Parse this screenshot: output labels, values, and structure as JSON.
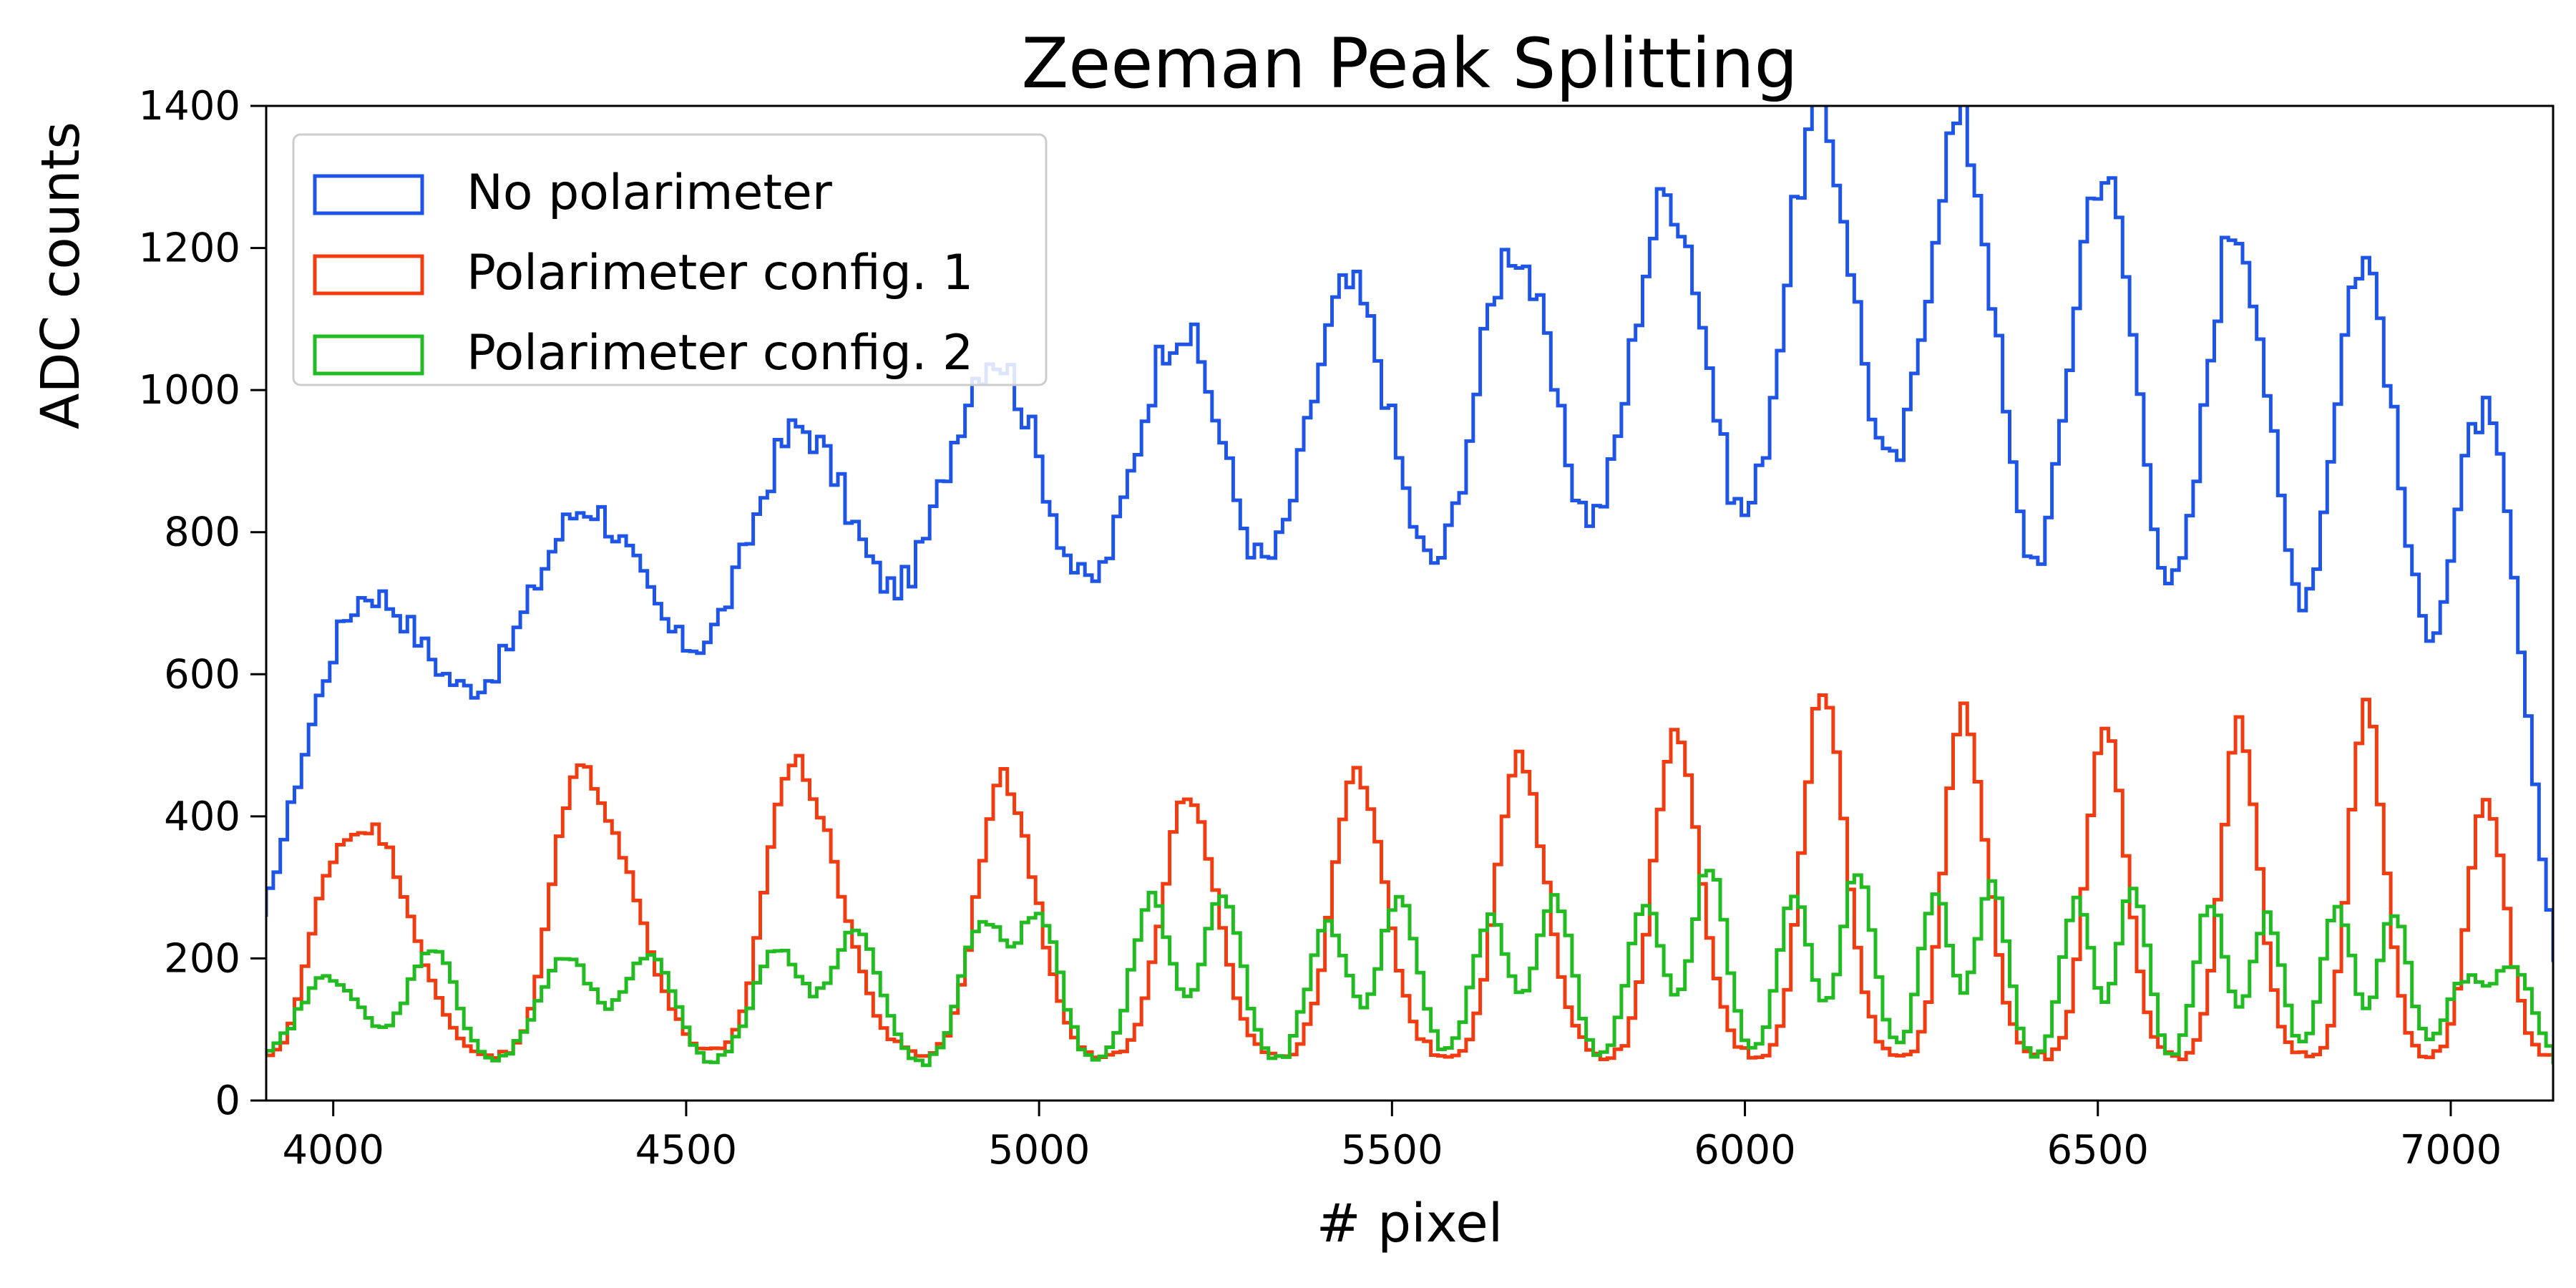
{
  "chart_data": {
    "type": "line",
    "step": true,
    "title": "Zeeman Peak Splitting",
    "xlabel": "# pixel",
    "ylabel": "ADC counts",
    "xlim": [
      3905,
      7145
    ],
    "ylim": [
      0,
      1400
    ],
    "xticks": [
      4000,
      4500,
      5000,
      5500,
      6000,
      6500,
      7000
    ],
    "yticks": [
      0,
      200,
      400,
      600,
      800,
      1000,
      1200,
      1400
    ],
    "legend_position": "top-left",
    "bin_width": 10,
    "series": [
      {
        "name": "No polarimeter",
        "color": "#1f55e6",
        "baseline": 30,
        "peaks": [
          {
            "x": 4060,
            "y": 660,
            "sl": 95,
            "sr": 130,
            "sh": 0.7
          },
          {
            "x": 4380,
            "y": 740,
            "sl": 95,
            "sr": 130,
            "sh": 0.72
          },
          {
            "x": 4680,
            "y": 830,
            "sl": 85,
            "sr": 110,
            "sh": 0.6
          },
          {
            "x": 4950,
            "y": 940,
            "sl": 80,
            "sr": 100,
            "sh": 0.65
          },
          {
            "x": 5210,
            "y": 990,
            "sl": 75,
            "sr": 90,
            "sh": 0.6
          },
          {
            "x": 5450,
            "y": 1050,
            "sl": 70,
            "sr": 85,
            "sh": 0.6
          },
          {
            "x": 5680,
            "y": 1110,
            "sl": 65,
            "sr": 80,
            "sh": 0.55
          },
          {
            "x": 5900,
            "y": 1185,
            "sl": 65,
            "sr": 75,
            "sh": 0.5
          },
          {
            "x": 6110,
            "y": 1295,
            "sl": 60,
            "sr": 72,
            "sh": 0.45
          },
          {
            "x": 6310,
            "y": 1285,
            "sl": 58,
            "sr": 68,
            "sh": 0.45
          },
          {
            "x": 6510,
            "y": 1235,
            "sl": 55,
            "sr": 65,
            "sh": 0.4
          },
          {
            "x": 6700,
            "y": 1160,
            "sl": 52,
            "sr": 62,
            "sh": 0.4
          },
          {
            "x": 6880,
            "y": 1115,
            "sl": 50,
            "sr": 58,
            "sh": 0.4
          },
          {
            "x": 7050,
            "y": 905,
            "sl": 50,
            "sr": 55,
            "sh": 0.35
          }
        ]
      },
      {
        "name": "Polarimeter config. 1",
        "color": "#f03c10",
        "baseline": 60,
        "peaks": [
          {
            "x": 3990,
            "y": 180,
            "sl": 30,
            "sr": 30,
            "sh": 0.0
          },
          {
            "x": 4060,
            "y": 305,
            "sl": 40,
            "sr": 55,
            "sh": 0.3
          },
          {
            "x": 4330,
            "y": 225,
            "sl": 30,
            "sr": 30,
            "sh": 0.0
          },
          {
            "x": 4385,
            "y": 310,
            "sl": 40,
            "sr": 55,
            "sh": 0.3
          },
          {
            "x": 4630,
            "y": 205,
            "sl": 30,
            "sr": 30,
            "sh": 0.0
          },
          {
            "x": 4680,
            "y": 320,
            "sl": 38,
            "sr": 50,
            "sh": 0.3
          },
          {
            "x": 4950,
            "y": 390,
            "sl": 35,
            "sr": 45,
            "sh": 0.25
          },
          {
            "x": 5210,
            "y": 360,
            "sl": 33,
            "sr": 42,
            "sh": 0.25
          },
          {
            "x": 5450,
            "y": 395,
            "sl": 32,
            "sr": 40,
            "sh": 0.2
          },
          {
            "x": 5680,
            "y": 415,
            "sl": 30,
            "sr": 38,
            "sh": 0.2
          },
          {
            "x": 5900,
            "y": 450,
            "sl": 28,
            "sr": 36,
            "sh": 0.2
          },
          {
            "x": 6110,
            "y": 510,
            "sl": 27,
            "sr": 33,
            "sh": 0.15
          },
          {
            "x": 6310,
            "y": 480,
            "sl": 26,
            "sr": 32,
            "sh": 0.15
          },
          {
            "x": 6510,
            "y": 465,
            "sl": 25,
            "sr": 30,
            "sh": 0.15
          },
          {
            "x": 6700,
            "y": 465,
            "sl": 24,
            "sr": 28,
            "sh": 0.15
          },
          {
            "x": 6880,
            "y": 485,
            "sl": 23,
            "sr": 27,
            "sh": 0.15
          },
          {
            "x": 7050,
            "y": 370,
            "sl": 24,
            "sr": 28,
            "sh": 0.15
          }
        ]
      },
      {
        "name": "Polarimeter config. 2",
        "color": "#22bb22",
        "baseline": 45,
        "peaks": [
          {
            "x": 3995,
            "y": 130,
            "sl": 45,
            "sr": 45,
            "sh": 0.0
          },
          {
            "x": 4140,
            "y": 170,
            "sl": 35,
            "sr": 35,
            "sh": 0.0
          },
          {
            "x": 4330,
            "y": 155,
            "sl": 40,
            "sr": 40,
            "sh": 0.0
          },
          {
            "x": 4450,
            "y": 160,
            "sl": 35,
            "sr": 35,
            "sh": 0.0
          },
          {
            "x": 4630,
            "y": 170,
            "sl": 35,
            "sr": 35,
            "sh": 0.0
          },
          {
            "x": 4740,
            "y": 195,
            "sl": 35,
            "sr": 35,
            "sh": 0.0
          },
          {
            "x": 4920,
            "y": 205,
            "sl": 30,
            "sr": 30,
            "sh": 0.0
          },
          {
            "x": 5000,
            "y": 215,
            "sl": 30,
            "sr": 30,
            "sh": 0.0
          },
          {
            "x": 5160,
            "y": 240,
            "sl": 28,
            "sr": 28,
            "sh": 0.0
          },
          {
            "x": 5260,
            "y": 245,
            "sl": 28,
            "sr": 28,
            "sh": 0.0
          },
          {
            "x": 5410,
            "y": 205,
            "sl": 28,
            "sr": 28,
            "sh": 0.0
          },
          {
            "x": 5510,
            "y": 240,
            "sl": 28,
            "sr": 28,
            "sh": 0.0
          },
          {
            "x": 5640,
            "y": 215,
            "sl": 26,
            "sr": 26,
            "sh": 0.0
          },
          {
            "x": 5730,
            "y": 245,
            "sl": 26,
            "sr": 26,
            "sh": 0.0
          },
          {
            "x": 5860,
            "y": 235,
            "sl": 25,
            "sr": 25,
            "sh": 0.0
          },
          {
            "x": 5950,
            "y": 285,
            "sl": 25,
            "sr": 25,
            "sh": 0.0
          },
          {
            "x": 6070,
            "y": 240,
            "sl": 24,
            "sr": 24,
            "sh": 0.0
          },
          {
            "x": 6160,
            "y": 275,
            "sl": 24,
            "sr": 24,
            "sh": 0.0
          },
          {
            "x": 6270,
            "y": 245,
            "sl": 23,
            "sr": 23,
            "sh": 0.0
          },
          {
            "x": 6350,
            "y": 260,
            "sl": 23,
            "sr": 23,
            "sh": 0.0
          },
          {
            "x": 6470,
            "y": 240,
            "sl": 22,
            "sr": 22,
            "sh": 0.0
          },
          {
            "x": 6550,
            "y": 255,
            "sl": 22,
            "sr": 22,
            "sh": 0.0
          },
          {
            "x": 6660,
            "y": 235,
            "sl": 22,
            "sr": 22,
            "sh": 0.0
          },
          {
            "x": 6740,
            "y": 215,
            "sl": 22,
            "sr": 22,
            "sh": 0.0
          },
          {
            "x": 6840,
            "y": 225,
            "sl": 22,
            "sr": 22,
            "sh": 0.0
          },
          {
            "x": 6920,
            "y": 220,
            "sl": 22,
            "sr": 22,
            "sh": 0.0
          },
          {
            "x": 7020,
            "y": 120,
            "sl": 28,
            "sr": 28,
            "sh": 0.0
          },
          {
            "x": 7090,
            "y": 140,
            "sl": 28,
            "sr": 28,
            "sh": 0.0
          }
        ]
      }
    ]
  }
}
